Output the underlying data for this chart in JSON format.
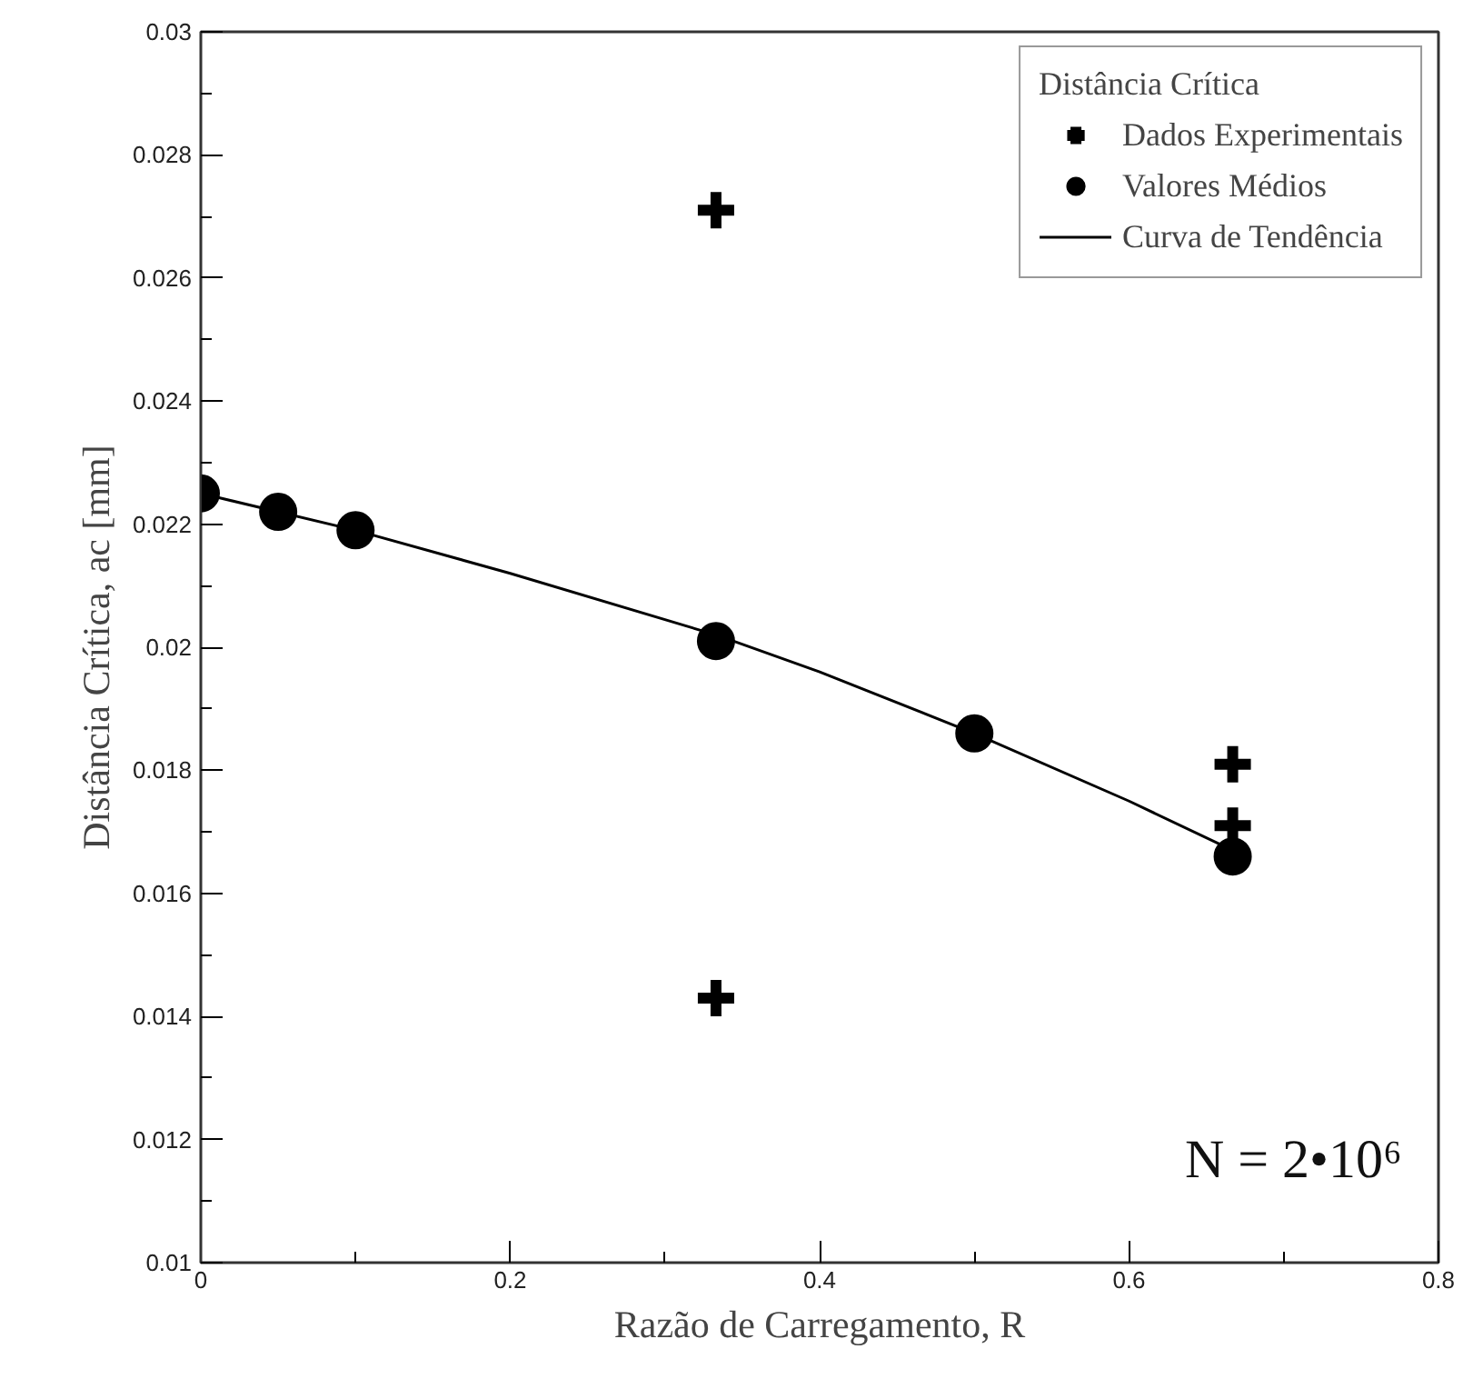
{
  "chart_data": {
    "type": "scatter",
    "xlabel": "Razão de Carregamento, R",
    "ylabel": "Distância Crítica, ac [mm]",
    "legend_title": "Distância Crítica",
    "legend": "top right",
    "grid": false,
    "xlim": [
      0,
      0.8
    ],
    "xticks": [
      0,
      0.2,
      0.4,
      0.6,
      0.8
    ],
    "ylim": [
      0.01,
      0.03
    ],
    "yticks": [
      0.01,
      0.012,
      0.014,
      0.016,
      0.018,
      0.02,
      0.022,
      0.024,
      0.026,
      0.028,
      0.03
    ],
    "series": [
      {
        "name": "Dados Experimentais",
        "marker": "cross",
        "color": "#000000",
        "x": [
          0.333,
          0.333,
          0.667,
          0.667
        ],
        "values": [
          0.0271,
          0.0143,
          0.0181,
          0.0171
        ]
      },
      {
        "name": "Valores Médios",
        "marker": "circle",
        "color": "#000000",
        "x": [
          0,
          0.05,
          0.1,
          0.333,
          0.5,
          0.667
        ],
        "values": [
          0.0225,
          0.0222,
          0.0219,
          0.0201,
          0.0186,
          0.0166
        ]
      },
      {
        "name": "Curva de Tendência",
        "type": "line",
        "line_style": "solid",
        "color": "#000000",
        "x": [
          0,
          0.1,
          0.2,
          0.333,
          0.4,
          0.5,
          0.6,
          0.667
        ],
        "values": [
          0.0225,
          0.0219,
          0.0212,
          0.0202,
          0.0196,
          0.0186,
          0.0175,
          0.0167
        ]
      }
    ],
    "annotations": [
      "N = 2•10⁶"
    ]
  }
}
